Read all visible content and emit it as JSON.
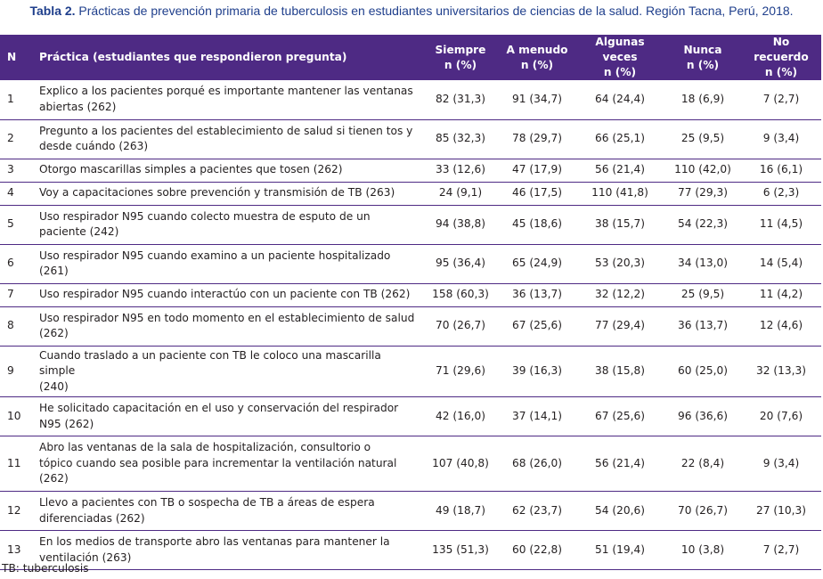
{
  "caption": {
    "label": "Tabla 2.",
    "text": " Prácticas de prevención primaria de tuberculosis en estudiantes universitarios de ciencias de la salud. Región Tacna, Perú, 2018."
  },
  "header": {
    "n": "N",
    "practica": "Práctica (estudiantes que respondieron pregunta)",
    "cols": [
      {
        "l1": "Siempre",
        "l2": "n (%)"
      },
      {
        "l1": "A menudo",
        "l2": "n (%)"
      },
      {
        "l1": "Algunas veces",
        "l2": "n (%)"
      },
      {
        "l1": "Nunca",
        "l2": "n (%)"
      },
      {
        "l1": "No recuerdo",
        "l2": "n (%)"
      }
    ]
  },
  "rows": [
    {
      "n": "1",
      "lines": [
        "Explico a los pacientes porqué es importante mantener las ventanas",
        "abiertas (262)"
      ],
      "v": [
        "82 (31,3)",
        "91 (34,7)",
        "64 (24,4)",
        "18 (6,9)",
        "7 (2,7)"
      ]
    },
    {
      "n": "2",
      "lines": [
        "Pregunto a los pacientes del establecimiento de salud si tienen tos y",
        "desde cuándo (263)"
      ],
      "v": [
        "85 (32,3)",
        "78 (29,7)",
        "66 (25,1)",
        "25 (9,5)",
        "9 (3,4)"
      ]
    },
    {
      "n": "3",
      "lines": [
        "Otorgo mascarillas simples a pacientes que tosen (262)"
      ],
      "v": [
        "33 (12,6)",
        "47 (17,9)",
        "56 (21,4)",
        "110 (42,0)",
        "16 (6,1)"
      ]
    },
    {
      "n": "4",
      "lines": [
        "Voy a capacitaciones sobre prevención y transmisión de TB (263)"
      ],
      "v": [
        "24 (9,1)",
        "46 (17,5)",
        "110 (41,8)",
        "77 (29,3)",
        "6 (2,3)"
      ]
    },
    {
      "n": "5",
      "lines": [
        "Uso respirador N95 cuando colecto muestra de esputo de un",
        "paciente (242)"
      ],
      "v": [
        "94 (38,8)",
        "45 (18,6)",
        "38 (15,7)",
        "54 (22,3)",
        "11 (4,5)"
      ]
    },
    {
      "n": "6",
      "lines": [
        "Uso respirador N95 cuando examino a un paciente hospitalizado",
        "(261)"
      ],
      "v": [
        "95 (36,4)",
        "65 (24,9)",
        "53 (20,3)",
        "34 (13,0)",
        "14 (5,4)"
      ]
    },
    {
      "n": "7",
      "lines": [
        "Uso respirador N95 cuando interactúo con un paciente con TB (262)"
      ],
      "v": [
        "158 (60,3)",
        "36 (13,7)",
        "32 (12,2)",
        "25 (9,5)",
        "11 (4,2)"
      ]
    },
    {
      "n": "8",
      "lines": [
        "Uso respirador N95 en todo momento en el establecimiento de salud",
        "(262)"
      ],
      "v": [
        "70 (26,7)",
        "67 (25,6)",
        "77 (29,4)",
        "36 (13,7)",
        "12 (4,6)"
      ]
    },
    {
      "n": "9",
      "lines": [
        "Cuando traslado a un paciente con TB le coloco una mascarilla simple",
        "(240)"
      ],
      "v": [
        "71 (29,6)",
        "39 (16,3)",
        "38 (15,8)",
        "60 (25,0)",
        "32 (13,3)"
      ]
    },
    {
      "n": "10",
      "lines": [
        "He solicitado capacitación en el uso y conservación del respirador",
        "N95 (262)"
      ],
      "v": [
        "42 (16,0)",
        "37 (14,1)",
        "67 (25,6)",
        "96 (36,6)",
        "20 (7,6)"
      ]
    },
    {
      "n": "11",
      "lines": [
        "Abro las ventanas de la sala de hospitalización, consultorio o",
        "tópico cuando sea posible para incrementar la ventilación natural",
        "(262)"
      ],
      "v": [
        "107 (40,8)",
        "68 (26,0)",
        "56 (21,4)",
        "22 (8,4)",
        "9 (3,4)"
      ]
    },
    {
      "n": "12",
      "lines": [
        "Llevo a pacientes con TB o sospecha de TB a áreas de espera",
        "diferenciadas (262)"
      ],
      "v": [
        "49 (18,7)",
        "62 (23,7)",
        "54 (20,6)",
        "70 (26,7)",
        "27 (10,3)"
      ]
    },
    {
      "n": "13",
      "lines": [
        "En los medios de transporte abro las ventanas para mantener la",
        "ventilación (263)"
      ],
      "v": [
        "135 (51,3)",
        "60 (22,8)",
        "51 (19,4)",
        "10 (3,8)",
        "7 (2,7)"
      ]
    }
  ],
  "footnote": "TB: tuberculosis"
}
